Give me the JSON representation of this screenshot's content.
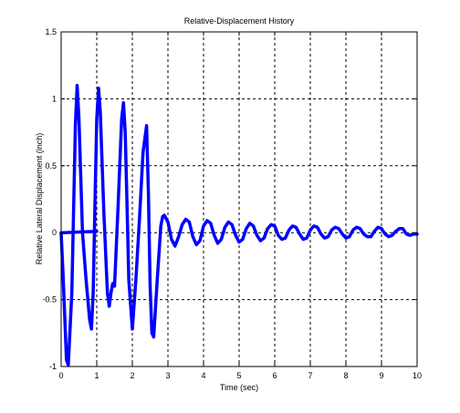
{
  "chart_data": {
    "type": "line",
    "title": "Relative-Displacement History",
    "xlabel": "Time (sec)",
    "ylabel": "Relative Lateral Displacement (inch)",
    "xlim": [
      0,
      10
    ],
    "ylim": [
      -1,
      1.5
    ],
    "xticks": [
      0,
      1,
      2,
      3,
      4,
      5,
      6,
      7,
      8,
      9,
      10
    ],
    "yticks": [
      -1,
      -0.5,
      0,
      0.5,
      1,
      1.5
    ],
    "xtick_labels": [
      "0",
      "1",
      "2",
      "3",
      "4",
      "5",
      "6",
      "7",
      "8",
      "9",
      "10"
    ],
    "ytick_labels": [
      "-1",
      "-0.5",
      "0",
      "0.5",
      "1",
      "1.5"
    ],
    "grid": true,
    "series": [
      {
        "color": "#0000ff",
        "x": [
          0,
          0.05,
          0.1,
          0.15,
          0.2,
          0.3,
          0.4,
          0.45,
          0.5,
          0.6,
          0.7,
          0.8,
          0.85,
          0.9,
          0.95,
          1.0,
          1.05,
          1.1,
          1.2,
          1.3,
          1.35,
          1.4,
          1.45,
          1.5,
          1.6,
          1.7,
          1.75,
          1.8,
          1.85,
          1.9,
          2.0,
          2.1,
          2.2,
          2.3,
          2.4,
          2.45,
          2.5,
          2.55,
          2.6,
          2.7,
          2.8,
          2.85,
          2.9,
          3.0,
          3.1,
          3.2,
          3.3,
          3.4,
          3.5,
          3.6,
          3.7,
          3.8,
          3.9,
          4.0,
          4.1,
          4.2,
          4.3,
          4.4,
          4.5,
          4.6,
          4.7,
          4.8,
          4.9,
          5.0,
          5.1,
          5.2,
          5.3,
          5.4,
          5.5,
          5.6,
          5.7,
          5.8,
          5.9,
          6.0,
          6.1,
          6.2,
          6.3,
          6.4,
          6.5,
          6.6,
          6.7,
          6.8,
          6.9,
          7.0,
          7.1,
          7.2,
          7.3,
          7.4,
          7.5,
          7.6,
          7.7,
          7.8,
          7.9,
          8.0,
          8.1,
          8.2,
          8.3,
          8.4,
          8.5,
          8.6,
          8.7,
          8.8,
          8.9,
          9.0,
          9.1,
          9.2,
          9.3,
          9.4,
          9.5,
          9.6,
          9.7,
          9.8,
          9.9,
          10.0
        ],
        "y": [
          0,
          -0.3,
          -0.62,
          -0.95,
          -0.99,
          -0.45,
          0.8,
          1.1,
          0.85,
          0.0,
          -0.35,
          -0.65,
          -0.72,
          -0.45,
          0.2,
          0.85,
          1.08,
          0.9,
          0.15,
          -0.45,
          -0.55,
          -0.45,
          -0.38,
          -0.4,
          0.2,
          0.85,
          0.97,
          0.75,
          0.2,
          -0.35,
          -0.72,
          -0.35,
          0.1,
          0.6,
          0.8,
          0.3,
          -0.4,
          -0.75,
          -0.78,
          -0.35,
          0.05,
          0.12,
          0.13,
          0.08,
          -0.05,
          -0.1,
          -0.03,
          0.06,
          0.1,
          0.08,
          -0.03,
          -0.09,
          -0.06,
          0.05,
          0.09,
          0.07,
          -0.02,
          -0.08,
          -0.05,
          0.04,
          0.08,
          0.06,
          -0.02,
          -0.07,
          -0.05,
          0.03,
          0.07,
          0.05,
          -0.02,
          -0.06,
          -0.04,
          0.03,
          0.06,
          0.05,
          -0.02,
          -0.05,
          -0.04,
          0.02,
          0.05,
          0.04,
          -0.01,
          -0.05,
          -0.04,
          0.02,
          0.05,
          0.04,
          -0.01,
          -0.04,
          -0.03,
          0.02,
          0.04,
          0.03,
          -0.01,
          -0.04,
          -0.03,
          0.02,
          0.04,
          0.03,
          -0.01,
          -0.03,
          -0.03,
          0.01,
          0.04,
          0.03,
          -0.01,
          -0.03,
          -0.02,
          0.01,
          0.03,
          0.03,
          -0.01,
          -0.02,
          -0.01,
          -0.01
        ]
      },
      {
        "color": "#0000ff",
        "x": [
          0.05,
          0.5,
          1.0
        ],
        "y": [
          0.0,
          0.005,
          0.01
        ]
      }
    ]
  }
}
